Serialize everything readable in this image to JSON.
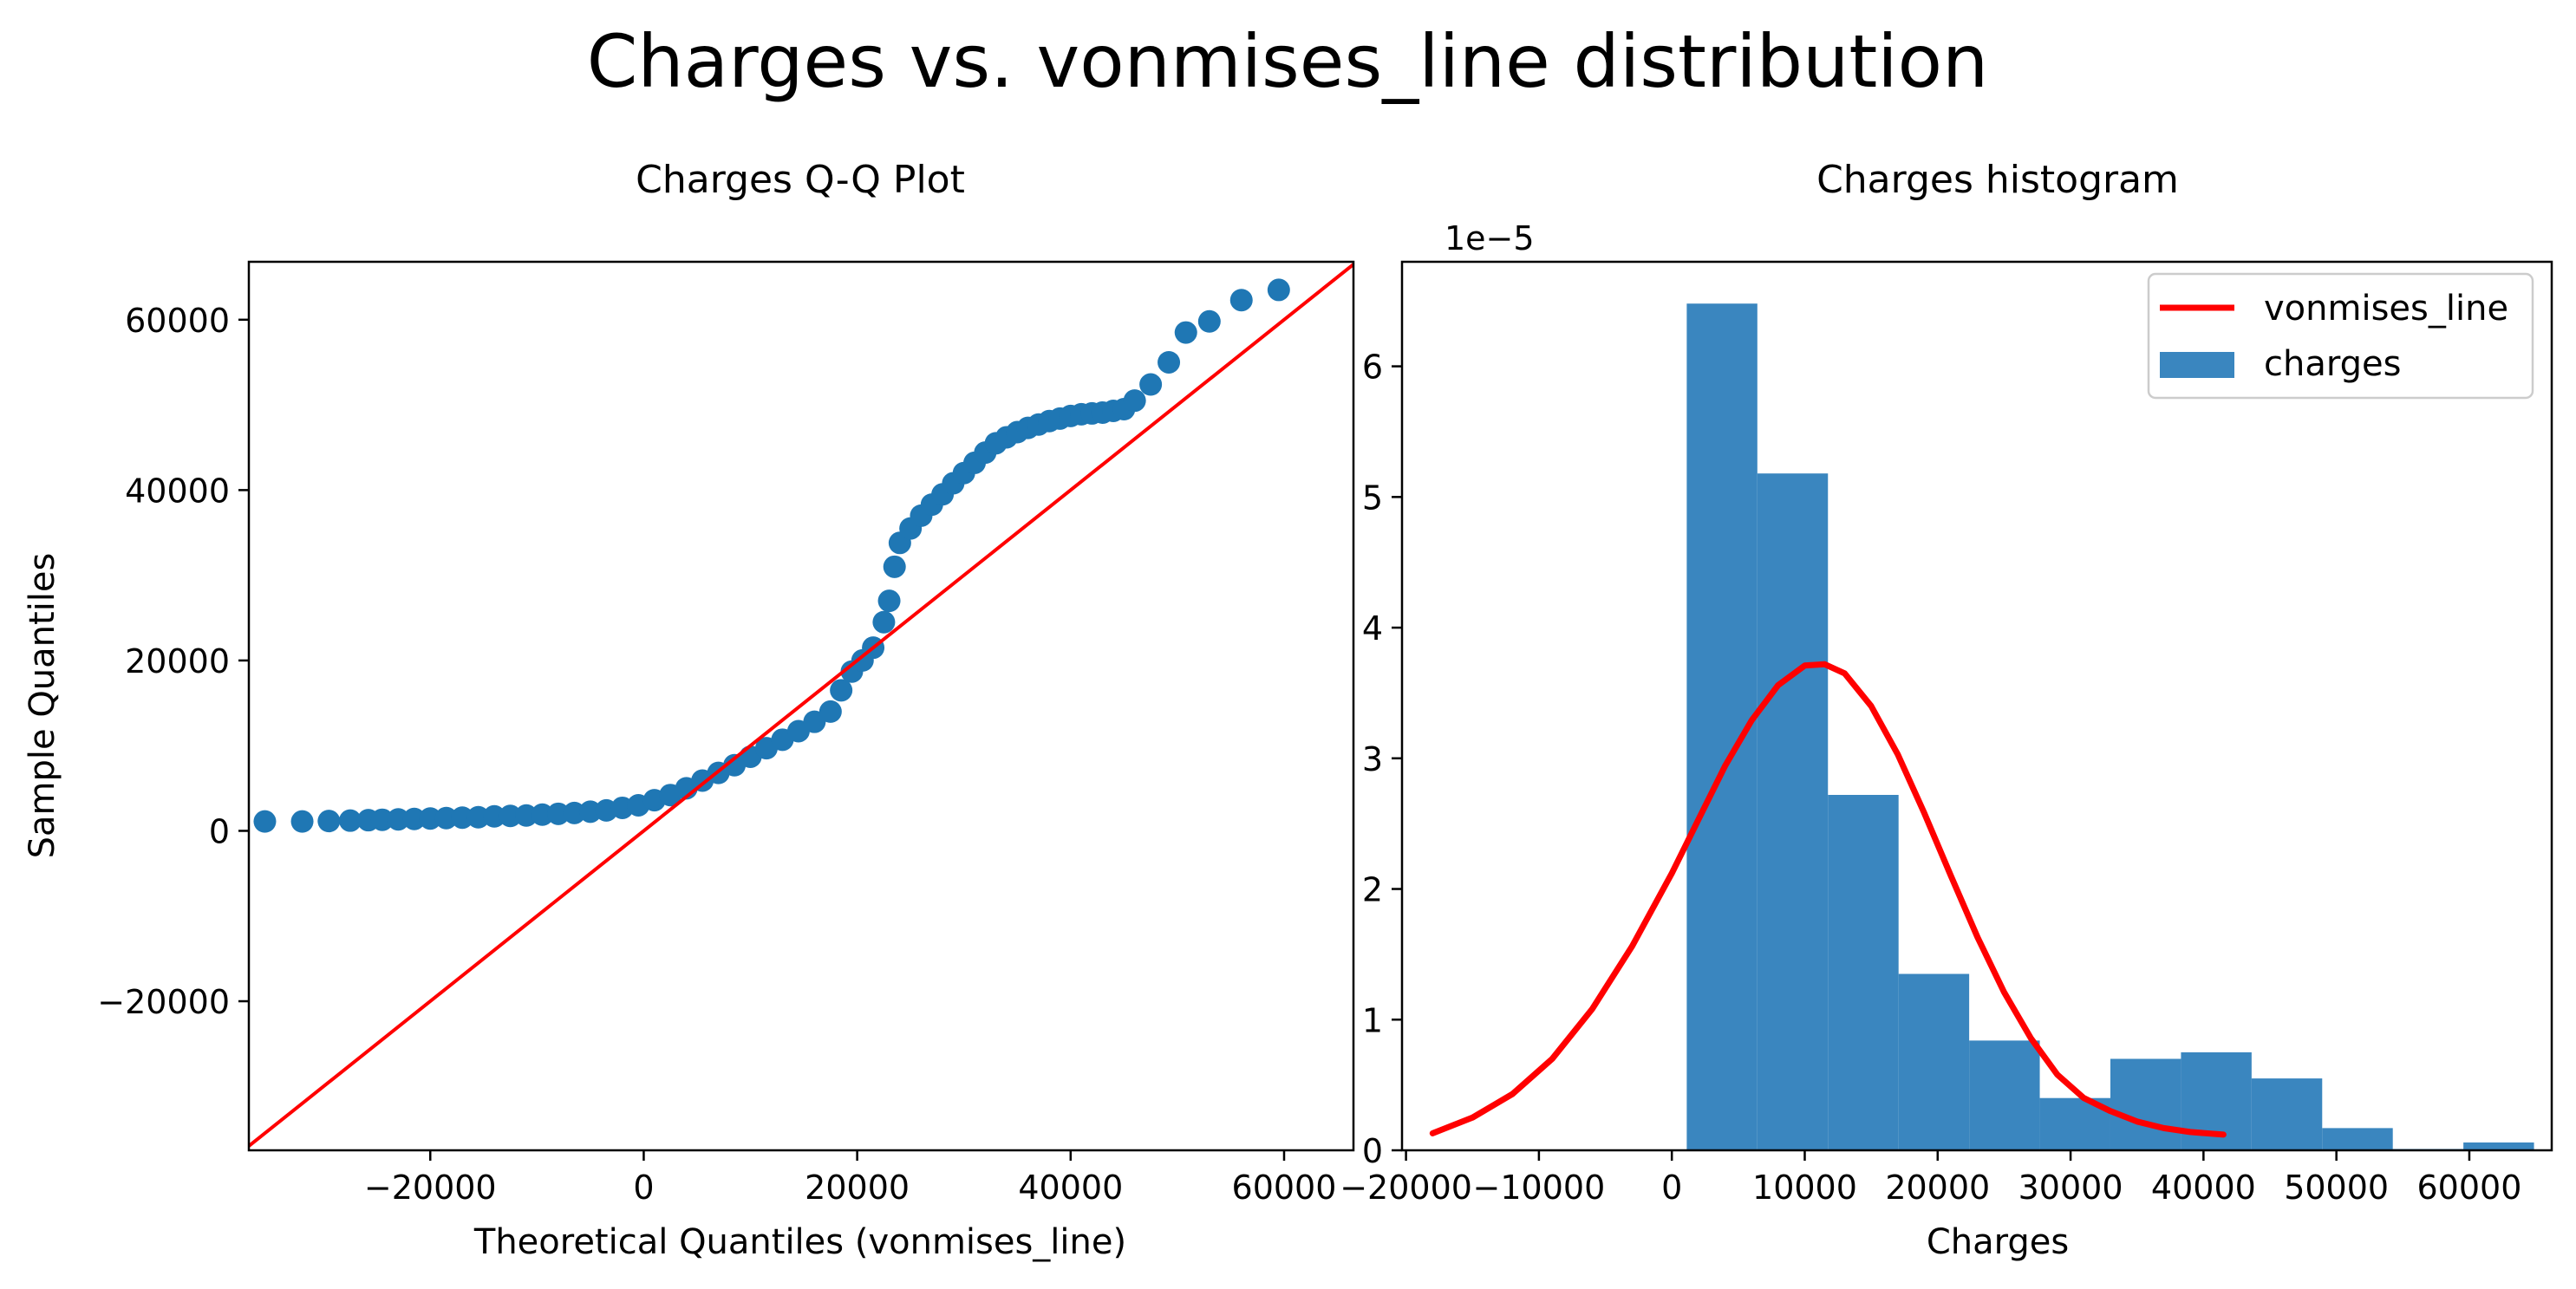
{
  "figure": {
    "suptitle": "Charges vs. vonmises_line distribution"
  },
  "chart_data": [
    {
      "type": "scatter",
      "title": "Charges Q-Q Plot",
      "xlabel": "Theoretical Quantiles (vonmises_line)",
      "ylabel": "Sample Quantiles",
      "xlim": [
        -37000,
        66500
      ],
      "ylim": [
        -37500,
        66800
      ],
      "xticks": [
        -20000,
        0,
        20000,
        40000,
        60000
      ],
      "xtick_labels": [
        "−20000",
        "0",
        "20000",
        "40000",
        "60000"
      ],
      "yticks": [
        -20000,
        0,
        20000,
        40000,
        60000
      ],
      "ytick_labels": [
        "−20000",
        "0",
        "20000",
        "40000",
        "60000"
      ],
      "grid": false,
      "series": [
        {
          "color": "#1f77b4",
          "x": [
            -35500,
            -32000,
            -29500,
            -27500,
            -25800,
            -24500,
            -23000,
            -21500,
            -20000,
            -18500,
            -17000,
            -15500,
            -14000,
            -12500,
            -11000,
            -9500,
            -8000,
            -6500,
            -5000,
            -3500,
            -2000,
            -500,
            1000,
            2500,
            4000,
            5500,
            7000,
            8500,
            10000,
            11500,
            13000,
            14500,
            16000,
            17500,
            18500,
            19500,
            20500,
            21500,
            22500,
            23000,
            23500,
            24000,
            25000,
            26000,
            27000,
            28000,
            29000,
            30000,
            31000,
            32000,
            33000,
            34000,
            35000,
            36000,
            37000,
            38000,
            39000,
            40000,
            41000,
            42000,
            43000,
            44000,
            45000,
            46000,
            47500,
            49200,
            50800,
            53000,
            56000,
            59500
          ],
          "y": [
            1100,
            1100,
            1150,
            1200,
            1250,
            1300,
            1350,
            1400,
            1450,
            1500,
            1550,
            1600,
            1700,
            1750,
            1800,
            1900,
            2000,
            2100,
            2250,
            2400,
            2700,
            3000,
            3600,
            4200,
            5000,
            5900,
            6800,
            7700,
            8700,
            9700,
            10700,
            11700,
            12800,
            14000,
            16500,
            18700,
            20000,
            21500,
            24500,
            27000,
            31000,
            33800,
            35500,
            37000,
            38300,
            39500,
            40800,
            42000,
            43200,
            44400,
            45500,
            46200,
            46800,
            47300,
            47700,
            48100,
            48400,
            48700,
            48900,
            49000,
            49100,
            49300,
            49500,
            50500,
            52400,
            55000,
            58500,
            59800,
            62300,
            63500
          ]
        }
      ],
      "reference_line": {
        "color": "#ff0000",
        "x": [
          -37000,
          66500
        ],
        "y": [
          -37000,
          66500
        ]
      }
    },
    {
      "type": "bar",
      "title": "Charges histogram",
      "xlabel": "Charges",
      "ylabel": "",
      "y_offset_label": "1e−5",
      "xlim": [
        -20300,
        66200
      ],
      "ylim": [
        0,
        6.8
      ],
      "xticks": [
        -20000,
        -10000,
        0,
        10000,
        20000,
        30000,
        40000,
        50000,
        60000
      ],
      "xtick_labels": [
        "−20000",
        "−10000",
        "0",
        "10000",
        "20000",
        "30000",
        "40000",
        "50000",
        "60000"
      ],
      "yticks": [
        0,
        1,
        2,
        3,
        4,
        5,
        6
      ],
      "ytick_labels": [
        "0",
        "1",
        "2",
        "3",
        "4",
        "5",
        "6"
      ],
      "grid": false,
      "legend_position": "top-right",
      "legend": [
        {
          "label": "vonmises_line",
          "kind": "line",
          "color": "#ff0000"
        },
        {
          "label": "charges",
          "kind": "patch",
          "color": "#3a86bf"
        }
      ],
      "series": [
        {
          "name": "charges",
          "kind": "histogram",
          "color": "#3a86bf",
          "bin_edges": [
            1122,
            6434,
            11746,
            17059,
            22371,
            27683,
            32995,
            38307,
            43619,
            48931,
            54243,
            59555,
            64867
          ],
          "values": [
            6.48,
            5.18,
            2.72,
            1.35,
            0.84,
            0.4,
            0.7,
            0.75,
            0.55,
            0.17,
            0.01,
            0.06
          ]
        },
        {
          "name": "vonmises_line",
          "kind": "line",
          "color": "#ff0000",
          "x": [
            -18000,
            -15000,
            -12000,
            -9000,
            -6000,
            -3000,
            0,
            2000,
            4000,
            6000,
            8000,
            10000,
            11500,
            13000,
            15000,
            17000,
            19000,
            21000,
            23000,
            25000,
            27000,
            29000,
            31000,
            33000,
            35000,
            37000,
            39000,
            41500
          ],
          "y": [
            0.13,
            0.25,
            0.43,
            0.7,
            1.08,
            1.56,
            2.12,
            2.53,
            2.94,
            3.29,
            3.56,
            3.71,
            3.72,
            3.65,
            3.4,
            3.03,
            2.58,
            2.1,
            1.63,
            1.21,
            0.86,
            0.58,
            0.4,
            0.3,
            0.22,
            0.17,
            0.14,
            0.12
          ]
        }
      ]
    }
  ]
}
